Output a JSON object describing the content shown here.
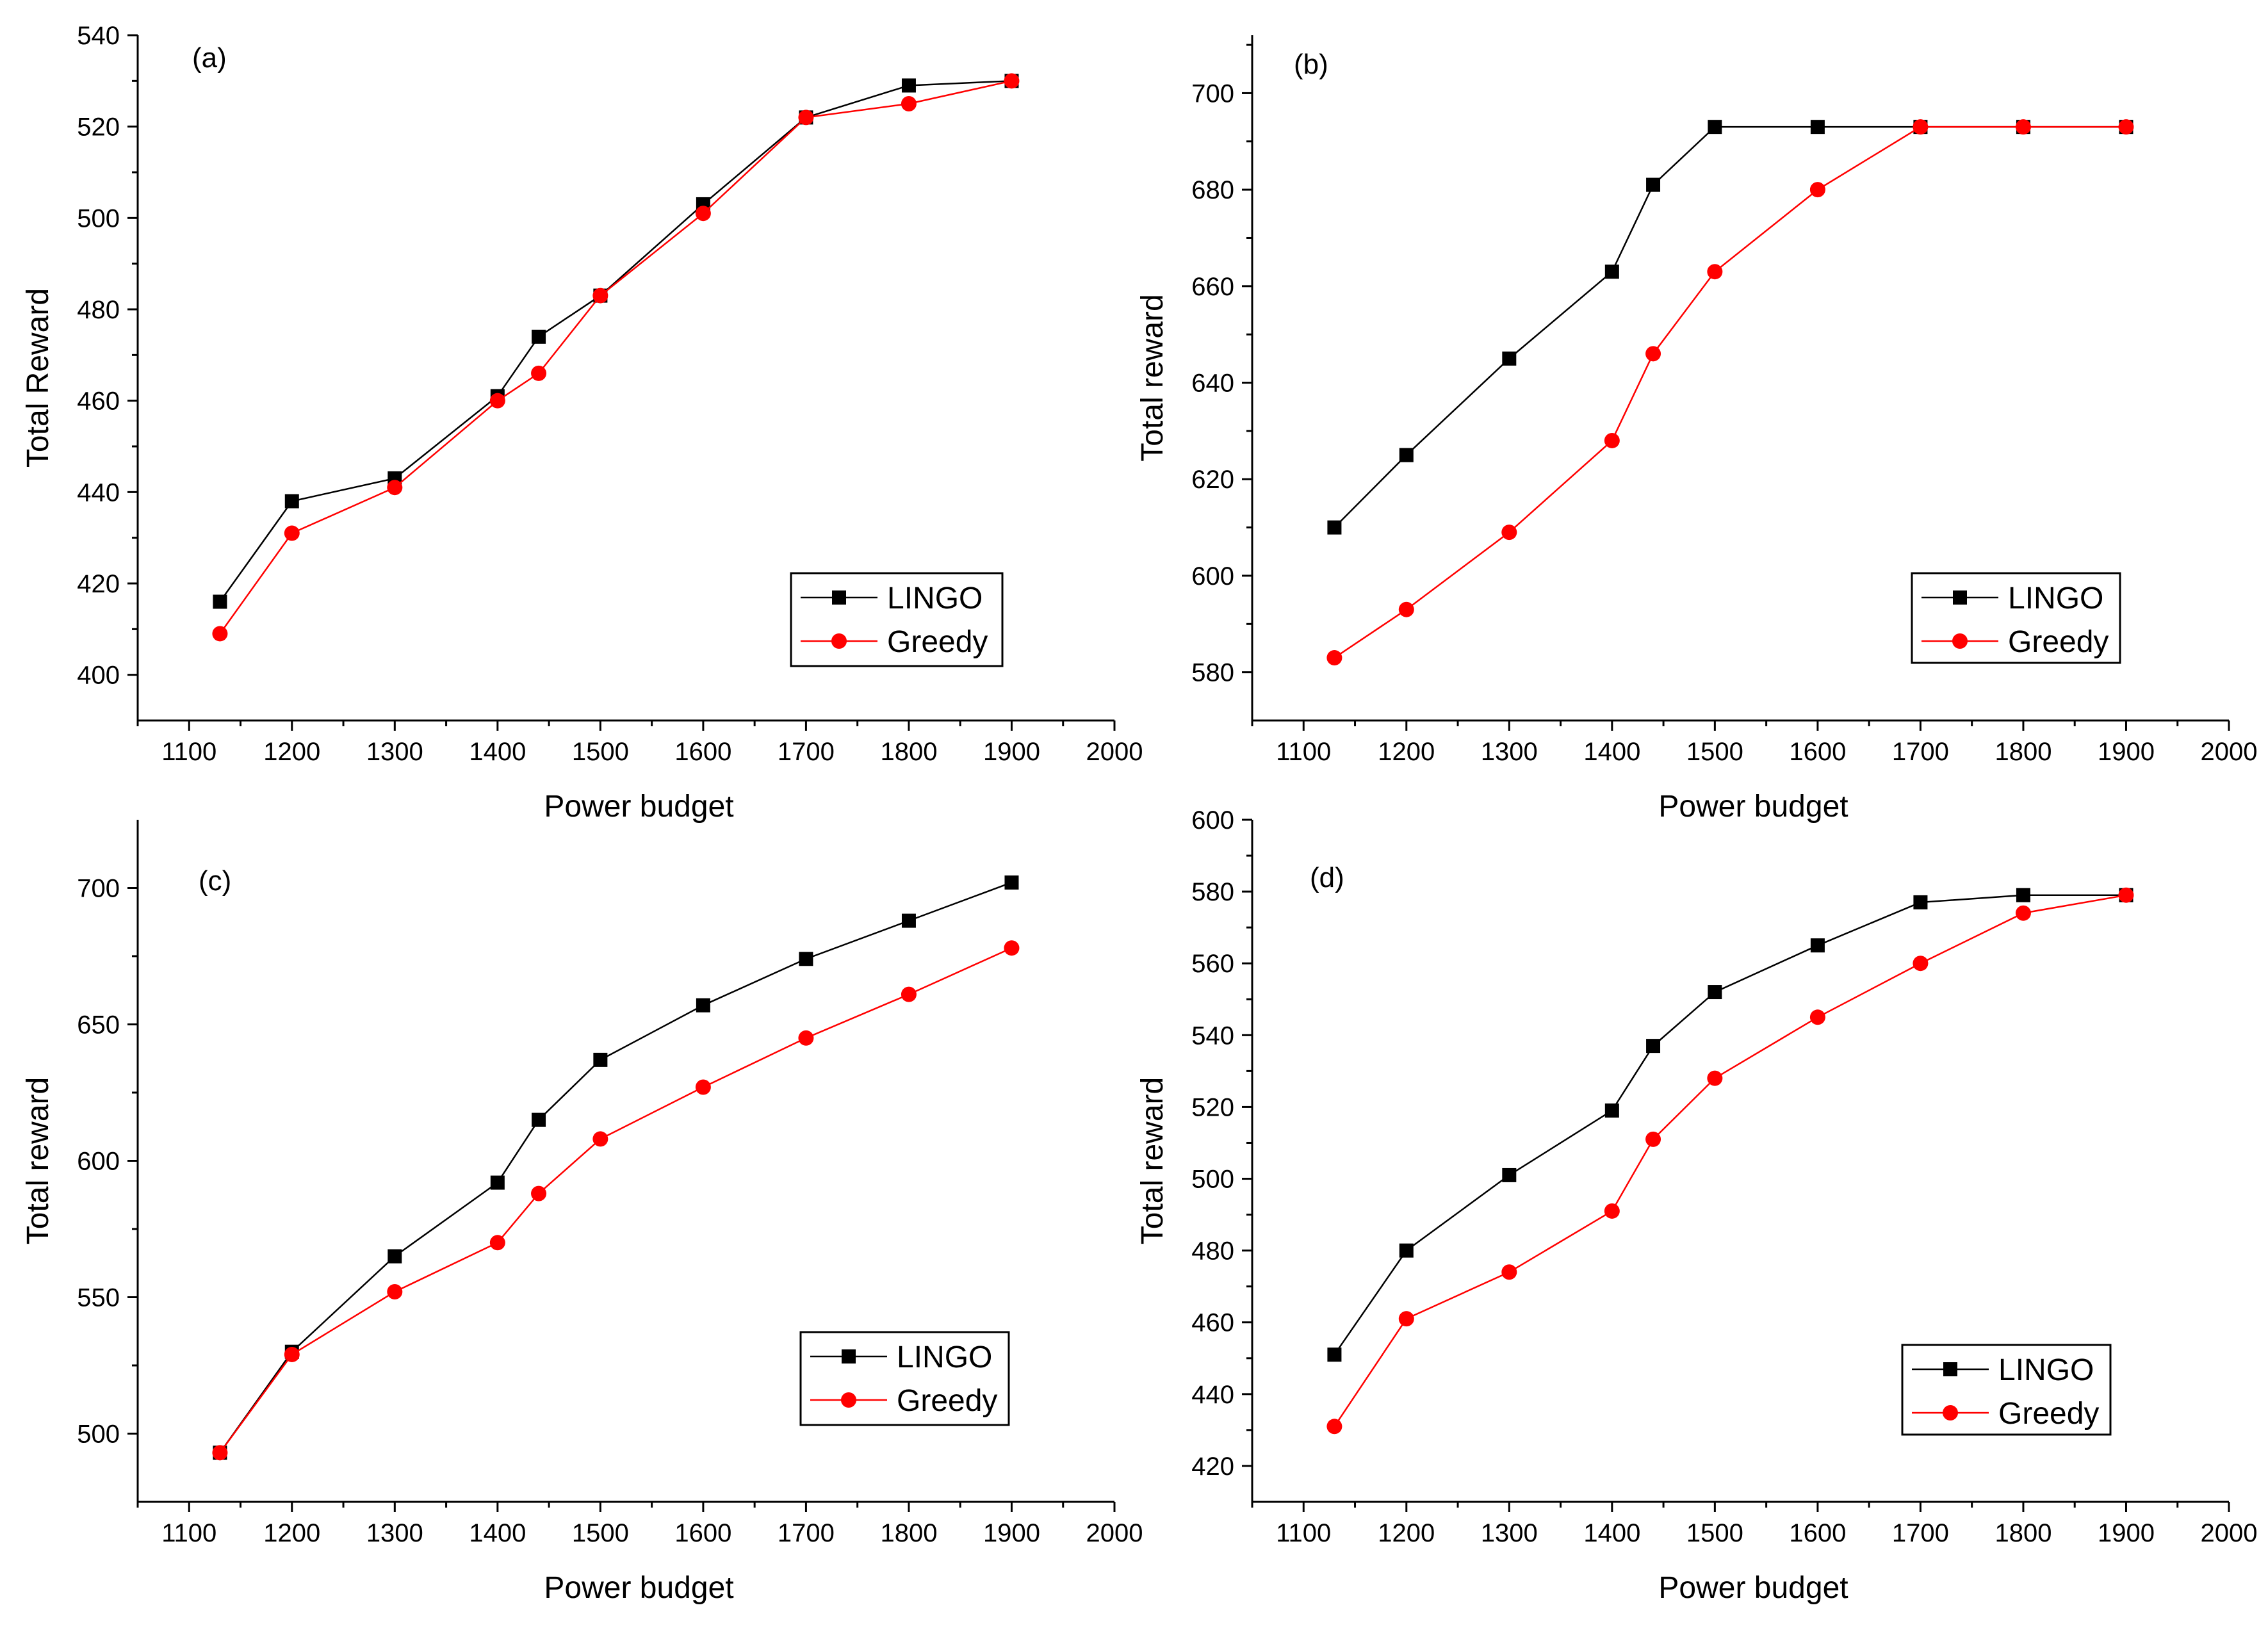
{
  "chart_data": [
    {
      "panel": "(a)",
      "type": "line",
      "xlabel": "Power budget",
      "ylabel": "Total Reward",
      "xlim": [
        1050,
        2000
      ],
      "ylim": [
        390,
        540
      ],
      "xticks": [
        1100,
        1200,
        1300,
        1400,
        1500,
        1600,
        1700,
        1800,
        1900,
        2000
      ],
      "yticks": [
        400,
        420,
        440,
        460,
        480,
        500,
        520,
        540
      ],
      "legend_position": "bottom-right",
      "series": [
        {
          "name": "LINGO",
          "color": "#000000",
          "marker": "square",
          "x": [
            1130,
            1200,
            1300,
            1400,
            1440,
            1500,
            1600,
            1700,
            1800,
            1900
          ],
          "y": [
            416,
            438,
            443,
            461,
            474,
            483,
            503,
            522,
            529,
            530
          ]
        },
        {
          "name": "Greedy",
          "color": "#ff0000",
          "marker": "circle",
          "x": [
            1130,
            1200,
            1300,
            1400,
            1440,
            1500,
            1600,
            1700,
            1800,
            1900
          ],
          "y": [
            409,
            431,
            441,
            460,
            466,
            483,
            501,
            522,
            525,
            530
          ]
        }
      ]
    },
    {
      "panel": "(b)",
      "type": "line",
      "xlabel": "Power budget",
      "ylabel": "Total reward",
      "xlim": [
        1050,
        2000
      ],
      "ylim": [
        570,
        712
      ],
      "xticks": [
        1100,
        1200,
        1300,
        1400,
        1500,
        1600,
        1700,
        1800,
        1900,
        2000
      ],
      "yticks": [
        580,
        600,
        620,
        640,
        660,
        680,
        700
      ],
      "legend_position": "bottom-right",
      "series": [
        {
          "name": "LINGO",
          "color": "#000000",
          "marker": "square",
          "x": [
            1130,
            1200,
            1300,
            1400,
            1440,
            1500,
            1600,
            1700,
            1800,
            1900
          ],
          "y": [
            610,
            625,
            645,
            663,
            681,
            693,
            693,
            693,
            693,
            693
          ]
        },
        {
          "name": "Greedy",
          "color": "#ff0000",
          "marker": "circle",
          "x": [
            1130,
            1200,
            1300,
            1400,
            1440,
            1500,
            1600,
            1700,
            1800,
            1900
          ],
          "y": [
            583,
            593,
            609,
            628,
            646,
            663,
            680,
            693,
            693,
            693
          ]
        }
      ]
    },
    {
      "panel": "(c)",
      "type": "line",
      "xlabel": "Power budget",
      "ylabel": "Total reward",
      "xlim": [
        1050,
        2000
      ],
      "ylim": [
        475,
        725
      ],
      "xticks": [
        1100,
        1200,
        1300,
        1400,
        1500,
        1600,
        1700,
        1800,
        1900,
        2000
      ],
      "yticks": [
        500,
        550,
        600,
        650,
        700
      ],
      "legend_position": "bottom-right",
      "series": [
        {
          "name": "LINGO",
          "color": "#000000",
          "marker": "square",
          "x": [
            1130,
            1200,
            1300,
            1400,
            1440,
            1500,
            1600,
            1700,
            1800,
            1900
          ],
          "y": [
            493,
            530,
            565,
            592,
            615,
            637,
            657,
            674,
            688,
            702
          ]
        },
        {
          "name": "Greedy",
          "color": "#ff0000",
          "marker": "circle",
          "x": [
            1130,
            1200,
            1300,
            1400,
            1440,
            1500,
            1600,
            1700,
            1800,
            1900
          ],
          "y": [
            493,
            529,
            552,
            570,
            588,
            608,
            627,
            645,
            661,
            678
          ]
        }
      ]
    },
    {
      "panel": "(d)",
      "type": "line",
      "xlabel": "Power budget",
      "ylabel": "Total reward",
      "xlim": [
        1050,
        2000
      ],
      "ylim": [
        410,
        600
      ],
      "xticks": [
        1100,
        1200,
        1300,
        1400,
        1500,
        1600,
        1700,
        1800,
        1900,
        2000
      ],
      "yticks": [
        420,
        440,
        460,
        480,
        500,
        520,
        540,
        560,
        580,
        600
      ],
      "legend_position": "bottom-right",
      "series": [
        {
          "name": "LINGO",
          "color": "#000000",
          "marker": "square",
          "x": [
            1130,
            1200,
            1300,
            1400,
            1440,
            1500,
            1600,
            1700,
            1800,
            1900
          ],
          "y": [
            451,
            480,
            501,
            519,
            537,
            552,
            565,
            577,
            579,
            579
          ]
        },
        {
          "name": "Greedy",
          "color": "#ff0000",
          "marker": "circle",
          "x": [
            1130,
            1200,
            1300,
            1400,
            1440,
            1500,
            1600,
            1700,
            1800,
            1900
          ],
          "y": [
            431,
            461,
            474,
            491,
            511,
            528,
            545,
            560,
            574,
            579
          ]
        }
      ]
    }
  ]
}
